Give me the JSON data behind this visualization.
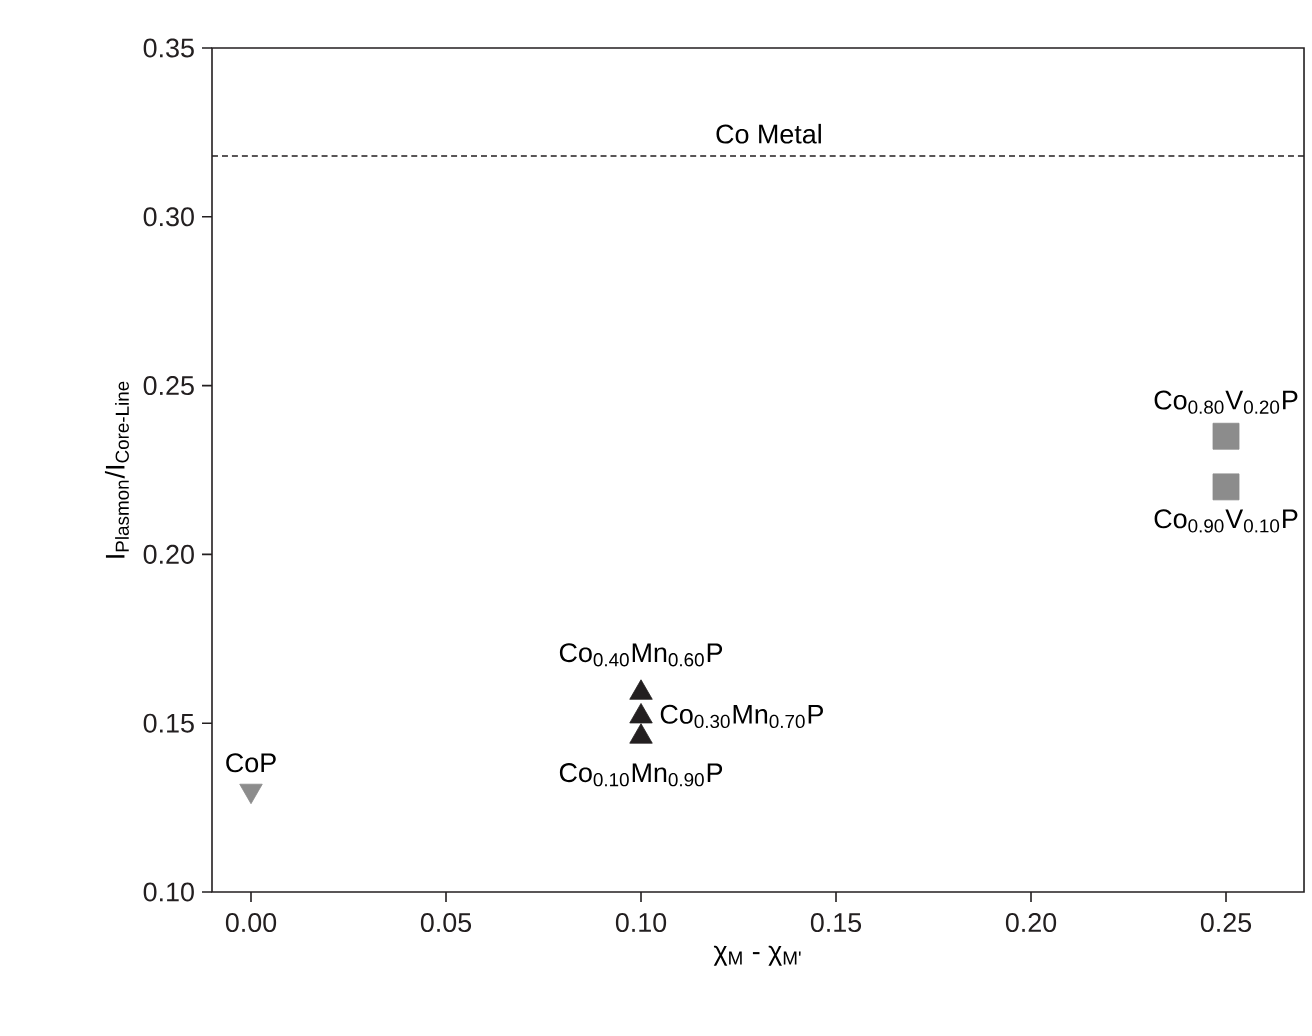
{
  "chart_data": {
    "type": "scatter",
    "xlabel": "χ$_{M}$ - χ$_{M'}$",
    "ylabel": "I$_{Plasmon}$/I$_{Core-Line}$",
    "xlim": [
      -0.01,
      0.27
    ],
    "ylim": [
      0.1,
      0.35
    ],
    "xticks": [
      {
        "value": 0,
        "label": "0.00"
      },
      {
        "value": 0.05,
        "label": "0.05"
      },
      {
        "value": 0.1,
        "label": "0.10"
      },
      {
        "value": 0.15,
        "label": "0.15"
      },
      {
        "value": 0.2,
        "label": "0.20"
      },
      {
        "value": 0.25,
        "label": "0.25"
      }
    ],
    "yticks": [
      {
        "value": 0.1,
        "label": "0.10"
      },
      {
        "value": 0.15,
        "label": "0.15"
      },
      {
        "value": 0.2,
        "label": "0.20"
      },
      {
        "value": 0.25,
        "label": "0.25"
      },
      {
        "value": 0.3,
        "label": "0.30"
      },
      {
        "value": 0.35,
        "label": "0.35"
      }
    ],
    "series": [
      {
        "color": "#8c8c8c",
        "marker": "triangle-down",
        "x": [
          0
        ],
        "values": [
          0.13
        ]
      },
      {
        "color": "#231f20",
        "marker": "triangle",
        "x": [
          0.1,
          0.1,
          0.1
        ],
        "values": [
          0.159,
          0.152,
          0.146
        ]
      },
      {
        "color": "#8c8c8c",
        "marker": "square",
        "x": [
          0.25,
          0.25
        ],
        "values": [
          0.235,
          0.22
        ]
      }
    ],
    "ref_lines": [
      {
        "axis": "y",
        "value": 0.318,
        "label": "Co Metal",
        "line_style": "dashed",
        "color": "#231f20"
      }
    ],
    "annotations": [
      {
        "text": "CoP",
        "x": 0,
        "y": 0.13
      },
      {
        "text": "Co$_{0.40}$Mn$_{0.60}$P",
        "x": 0.1,
        "y": 0.159
      },
      {
        "text": "Co$_{0.30}$Mn$_{0.70}$P",
        "x": 0.1,
        "y": 0.152
      },
      {
        "text": "Co$_{0.10}$Mn$_{0.90}$P",
        "x": 0.1,
        "y": 0.146
      },
      {
        "text": "Co$_{0.80}$V$_{0.20}$P",
        "x": 0.25,
        "y": 0.235
      },
      {
        "text": "Co$_{0.90}$V$_{0.10}$P",
        "x": 0.25,
        "y": 0.22
      }
    ]
  }
}
